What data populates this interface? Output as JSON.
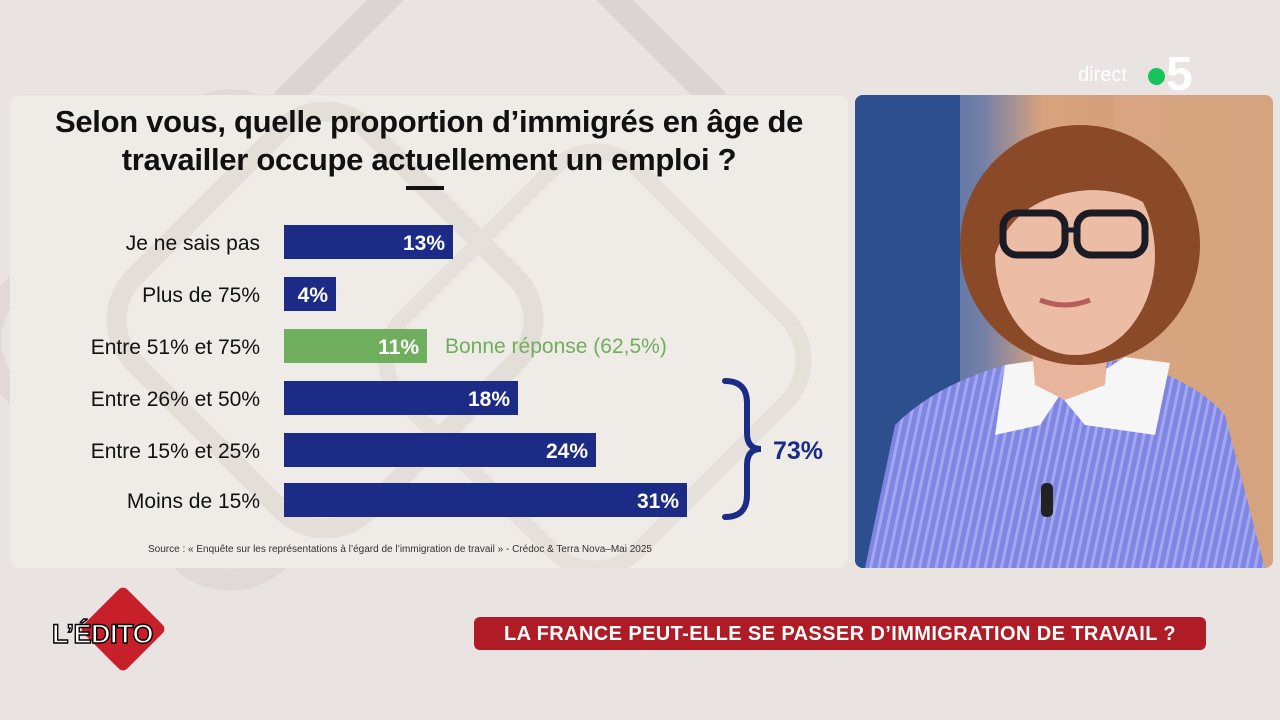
{
  "broadcast": {
    "live_label": "direct",
    "channel": "5"
  },
  "chart_data": {
    "type": "bar",
    "orientation": "horizontal",
    "title": "Selon vous, quelle proportion d’immigrés en âge de travailler occupe actuellement un emploi ?",
    "title_lines": [
      "Selon vous, quelle proportion d’immigrés en âge de",
      "travailler occupe actuellement un emploi ?"
    ],
    "categories": [
      "Je ne sais pas",
      "Plus de 75%",
      "Entre 51% et 75%",
      "Entre 26% et 50%",
      "Entre 15% et 25%",
      "Moins de 15%"
    ],
    "values": [
      13,
      4,
      11,
      18,
      24,
      31
    ],
    "value_labels": [
      "13%",
      "4%",
      "11%",
      "18%",
      "24%",
      "31%"
    ],
    "bar_colors": [
      "#1c2b86",
      "#1c2b86",
      "#6fae5c",
      "#1c2b86",
      "#1c2b86",
      "#1c2b86"
    ],
    "highlight_color": "#6fae5c",
    "primary_color": "#1c2b86",
    "annotations": [
      {
        "category": "Entre 51% et 75%",
        "text": "Bonne réponse (62,5%)",
        "color": "#6fae5c"
      },
      {
        "type": "brace",
        "categories": [
          "Entre 26% et 50%",
          "Entre 15% et 25%",
          "Moins de 15%"
        ],
        "text": "73%",
        "color": "#1c2b86"
      }
    ],
    "source": "Source  :  « Enquête sur les représentations à l’égard de l’immigration de travail » - Crédoc & Terra Nova–Mai 2025"
  },
  "ticker": {
    "text": "LA FRANCE PEUT-ELLE SE PASSER D’IMMIGRATION DE TRAVAIL ?"
  },
  "show": {
    "logo_text": "L’ÉDITO"
  }
}
